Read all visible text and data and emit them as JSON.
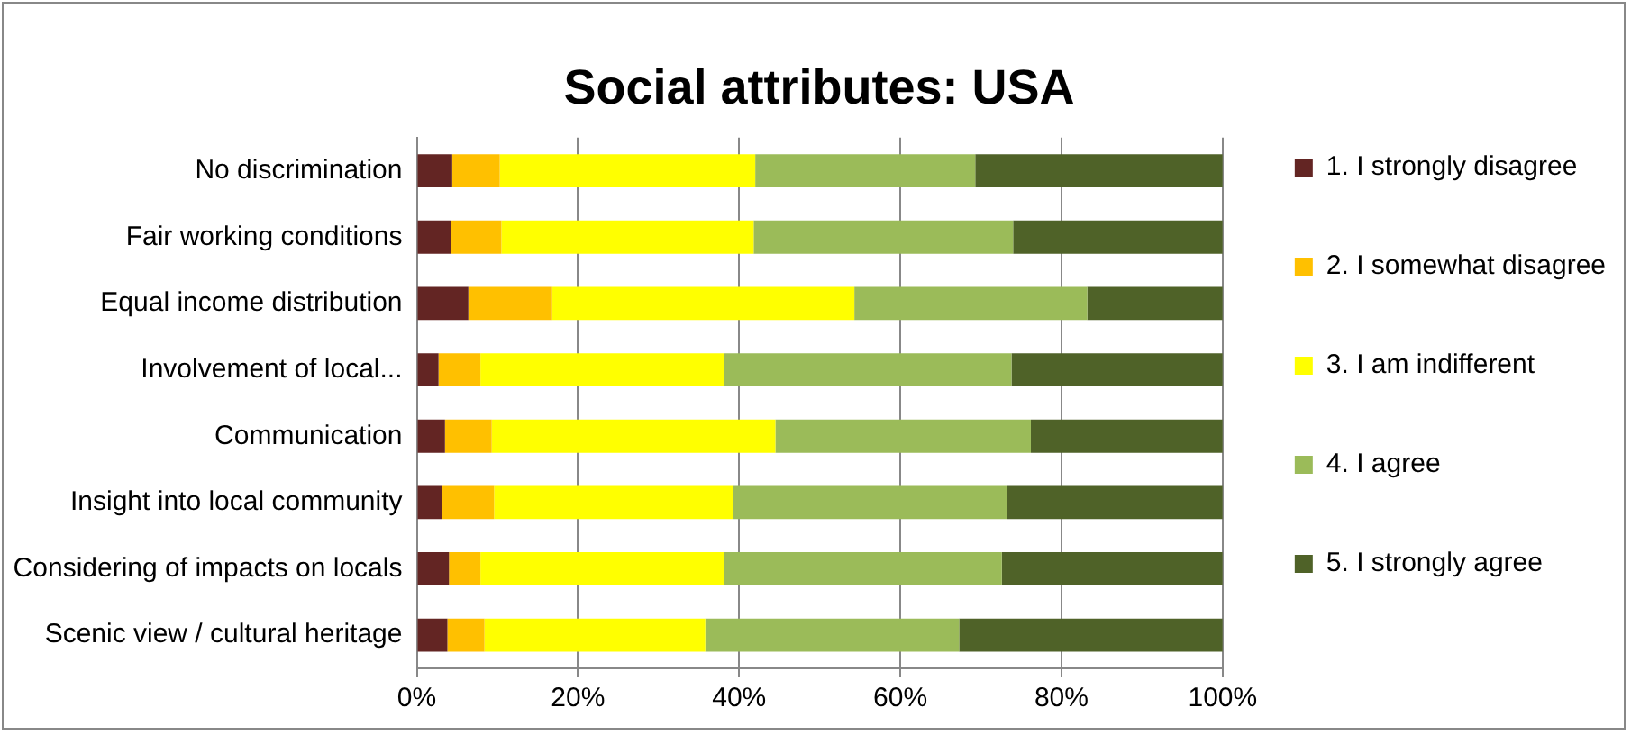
{
  "chart_data": {
    "type": "bar",
    "orientation": "horizontal",
    "stacked": true,
    "title": "Social attributes: USA",
    "categories": [
      "No discrimination",
      "Fair working conditions",
      "Equal income distribution",
      "Involvement of local...",
      "Communication",
      "Insight into local community",
      "Considering of impacts on locals",
      "Scenic view / cultural heritage"
    ],
    "series": [
      {
        "name": "1. I strongly disagree",
        "color": "#632523",
        "values": [
          4.4,
          4.2,
          6.4,
          2.7,
          3.5,
          3.1,
          4.0,
          3.8
        ]
      },
      {
        "name": "2. I somewhat disagree",
        "color": "#ffc000",
        "values": [
          5.9,
          6.3,
          10.4,
          5.2,
          5.8,
          6.5,
          3.9,
          4.6
        ]
      },
      {
        "name": "3. I am indifferent",
        "color": "#ffff00",
        "values": [
          31.7,
          31.3,
          37.5,
          30.2,
          35.2,
          29.6,
          30.2,
          27.4
        ]
      },
      {
        "name": "4. I agree",
        "color": "#9bbb59",
        "values": [
          27.3,
          32.2,
          28.9,
          35.7,
          31.7,
          34.0,
          34.5,
          31.5
        ]
      },
      {
        "name": "5. I strongly agree",
        "color": "#4f6228",
        "values": [
          30.7,
          26.0,
          16.8,
          26.2,
          23.8,
          26.8,
          27.4,
          32.7
        ]
      }
    ],
    "xlim": [
      0,
      100
    ],
    "xticks": [
      {
        "value": 0,
        "label": "0%"
      },
      {
        "value": 20,
        "label": "20%"
      },
      {
        "value": 40,
        "label": "40%"
      },
      {
        "value": 60,
        "label": "60%"
      },
      {
        "value": 80,
        "label": "80%"
      },
      {
        "value": 100,
        "label": "100%"
      }
    ],
    "grid": "x",
    "legend": "right"
  }
}
